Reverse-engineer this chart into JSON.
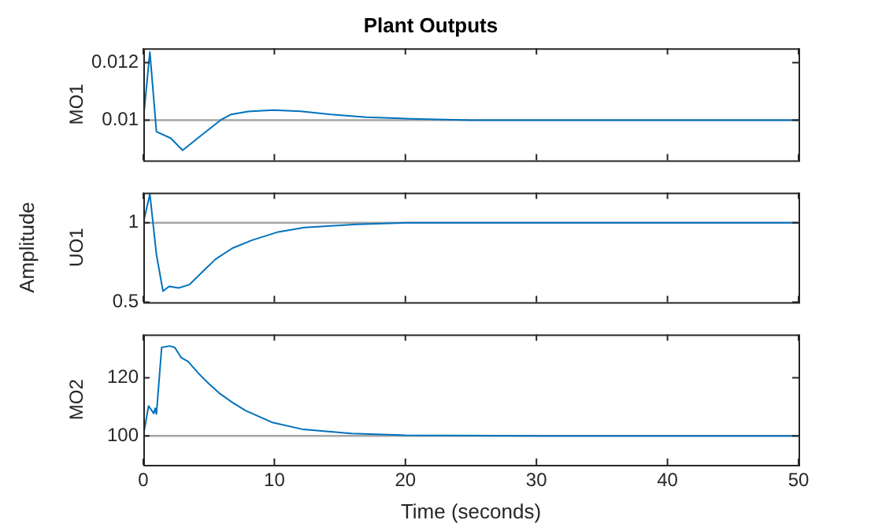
{
  "chart_data": [
    {
      "type": "line",
      "title": "Plant Outputs",
      "ylabel": "MO1",
      "xlim": [
        0,
        50
      ],
      "xticks": [
        0,
        10,
        20,
        30,
        40,
        50
      ],
      "ylim": [
        0.0086,
        0.0125
      ],
      "yticks": [
        {
          "value": 0.01,
          "label": "0.01"
        },
        {
          "value": 0.012,
          "label": "0.012"
        }
      ],
      "tick_labels": "y",
      "grid": false,
      "legend": false,
      "ref_lines": [
        {
          "axis": "y",
          "value": 0.01,
          "color": "#a6a6a6"
        }
      ],
      "series": [
        {
          "color": "#0072bd",
          "x": [
            0,
            0.5,
            1.0,
            2.1,
            3.0,
            4.5,
            5.9,
            6.7,
            8.0,
            9.9,
            12.0,
            14.3,
            17.0,
            20.3,
            25.0,
            30.0,
            40.0,
            50.0
          ],
          "values": [
            0.01,
            0.01237,
            0.0096,
            0.00937,
            0.00895,
            0.0095,
            0.01,
            0.0102,
            0.0103,
            0.01035,
            0.01031,
            0.0102,
            0.0101,
            0.01005,
            0.01,
            0.01,
            0.01,
            0.01
          ]
        }
      ]
    },
    {
      "type": "line",
      "ylabel": "UO1",
      "annotations": [
        "Amplitude"
      ],
      "xlim": [
        0,
        50
      ],
      "xticks": [
        0,
        10,
        20,
        30,
        40,
        50
      ],
      "ylim": [
        0.5,
        1.19
      ],
      "yticks": [
        0.5,
        1
      ],
      "tick_labels": "y",
      "grid": false,
      "legend": false,
      "ref_lines": [
        {
          "axis": "y",
          "value": 1,
          "color": "#a6a6a6"
        }
      ],
      "series": [
        {
          "color": "#0072bd",
          "x": [
            0,
            0.5,
            1.0,
            1.5,
            1.97,
            2.7,
            3.5,
            4.5,
            5.5,
            6.8,
            8.3,
            10.2,
            12.3,
            14.3,
            16.3,
            20.0,
            25.0,
            30.0,
            40.0,
            50.0
          ],
          "values": [
            1,
            1.18,
            0.8,
            0.57,
            0.6,
            0.59,
            0.61,
            0.69,
            0.77,
            0.84,
            0.89,
            0.94,
            0.97,
            0.98,
            0.99,
            1,
            1,
            1,
            1,
            1
          ]
        }
      ]
    },
    {
      "type": "line",
      "ylabel": "MO2",
      "xlabel": "Time (seconds)",
      "xlim": [
        0,
        50
      ],
      "xticks": [
        0,
        10,
        20,
        30,
        40,
        50
      ],
      "ylim": [
        90,
        135
      ],
      "yticks": [
        100,
        120
      ],
      "grid": false,
      "legend": false,
      "ref_lines": [
        {
          "axis": "y",
          "value": 100,
          "color": "#a6a6a6"
        }
      ],
      "series": [
        {
          "color": "#0072bd",
          "x": [
            0,
            0.4,
            0.8,
            0.9,
            1.0,
            1.4,
            2.0,
            2.4,
            2.9,
            3.4,
            4.2,
            5.0,
            5.8,
            6.8,
            7.8,
            9.8,
            12.2,
            15.9,
            20.0,
            30.0,
            50.0
          ],
          "values": [
            100,
            110.3,
            107.7,
            109.5,
            107.5,
            130.5,
            131,
            130.5,
            126.9,
            125.7,
            121.6,
            118,
            114.7,
            111.5,
            108.7,
            104.7,
            102.2,
            100.8,
            100.2,
            100,
            100
          ]
        }
      ]
    }
  ]
}
